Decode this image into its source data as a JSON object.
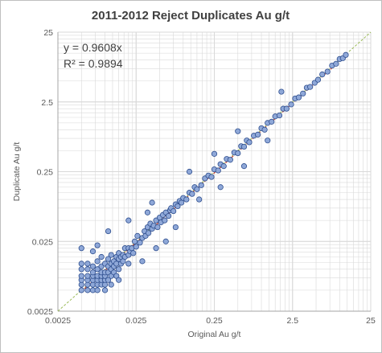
{
  "chart_data": {
    "type": "scatter",
    "title": "2011-2012 Reject Duplicates Au g/t",
    "xlabel": "Original Au g/t",
    "ylabel": "Duplicate Au  g/t",
    "scale": "log",
    "xlim": [
      0.0025,
      25
    ],
    "ylim": [
      0.0025,
      25
    ],
    "x_ticks": [
      "0.0025",
      "0.025",
      "0.25",
      "2.5",
      "25"
    ],
    "y_ticks": [
      "0.0025",
      "0.025",
      "0.25",
      "2.5",
      "25"
    ],
    "grid": true,
    "legend": "none",
    "annotations": {
      "equation": "y = 0.9608x",
      "r_squared": "R² = 0.9894"
    },
    "colors": {
      "points_fill": "#8fa8d8",
      "points_edge": "#2f4f8f",
      "trendline": "#c0392b",
      "one_to_one_line": "#9bbb59",
      "grid": "#d9d9d9"
    },
    "series": [
      {
        "name": "",
        "points": [
          [
            0.005,
            0.005
          ],
          [
            0.005,
            0.006
          ],
          [
            0.005,
            0.007
          ],
          [
            0.005,
            0.008
          ],
          [
            0.005,
            0.01
          ],
          [
            0.005,
            0.012
          ],
          [
            0.006,
            0.005
          ],
          [
            0.006,
            0.006
          ],
          [
            0.006,
            0.007
          ],
          [
            0.006,
            0.008
          ],
          [
            0.006,
            0.01
          ],
          [
            0.006,
            0.012
          ],
          [
            0.007,
            0.005
          ],
          [
            0.007,
            0.006
          ],
          [
            0.007,
            0.007
          ],
          [
            0.007,
            0.008
          ],
          [
            0.007,
            0.009
          ],
          [
            0.007,
            0.011
          ],
          [
            0.008,
            0.005
          ],
          [
            0.008,
            0.006
          ],
          [
            0.008,
            0.007
          ],
          [
            0.008,
            0.008
          ],
          [
            0.008,
            0.01
          ],
          [
            0.008,
            0.013
          ],
          [
            0.009,
            0.006
          ],
          [
            0.009,
            0.007
          ],
          [
            0.009,
            0.008
          ],
          [
            0.009,
            0.009
          ],
          [
            0.009,
            0.011
          ],
          [
            0.009,
            0.015
          ],
          [
            0.01,
            0.005
          ],
          [
            0.01,
            0.006
          ],
          [
            0.01,
            0.007
          ],
          [
            0.01,
            0.008
          ],
          [
            0.01,
            0.009
          ],
          [
            0.01,
            0.012
          ],
          [
            0.011,
            0.007
          ],
          [
            0.011,
            0.009
          ],
          [
            0.011,
            0.011
          ],
          [
            0.011,
            0.014
          ],
          [
            0.012,
            0.006
          ],
          [
            0.012,
            0.008
          ],
          [
            0.012,
            0.01
          ],
          [
            0.012,
            0.012
          ],
          [
            0.012,
            0.016
          ],
          [
            0.013,
            0.009
          ],
          [
            0.013,
            0.011
          ],
          [
            0.013,
            0.013
          ],
          [
            0.014,
            0.008
          ],
          [
            0.014,
            0.012
          ],
          [
            0.014,
            0.015
          ],
          [
            0.015,
            0.01
          ],
          [
            0.015,
            0.014
          ],
          [
            0.015,
            0.017
          ],
          [
            0.016,
            0.012
          ],
          [
            0.016,
            0.015
          ],
          [
            0.017,
            0.013
          ],
          [
            0.017,
            0.016
          ],
          [
            0.018,
            0.015
          ],
          [
            0.018,
            0.02
          ],
          [
            0.02,
            0.012
          ],
          [
            0.02,
            0.016
          ],
          [
            0.02,
            0.02
          ],
          [
            0.021,
            0.018
          ],
          [
            0.022,
            0.02
          ],
          [
            0.023,
            0.017
          ],
          [
            0.024,
            0.025
          ],
          [
            0.025,
            0.021
          ],
          [
            0.026,
            0.03
          ],
          [
            0.028,
            0.024
          ],
          [
            0.03,
            0.028
          ],
          [
            0.032,
            0.035
          ],
          [
            0.033,
            0.03
          ],
          [
            0.035,
            0.04
          ],
          [
            0.036,
            0.033
          ],
          [
            0.038,
            0.045
          ],
          [
            0.04,
            0.038
          ],
          [
            0.042,
            0.042
          ],
          [
            0.045,
            0.05
          ],
          [
            0.047,
            0.04
          ],
          [
            0.05,
            0.055
          ],
          [
            0.052,
            0.047
          ],
          [
            0.055,
            0.06
          ],
          [
            0.058,
            0.05
          ],
          [
            0.06,
            0.065
          ],
          [
            0.065,
            0.058
          ],
          [
            0.068,
            0.07
          ],
          [
            0.07,
            0.075
          ],
          [
            0.075,
            0.068
          ],
          [
            0.08,
            0.085
          ],
          [
            0.085,
            0.08
          ],
          [
            0.09,
            0.095
          ],
          [
            0.095,
            0.09
          ],
          [
            0.1,
            0.105
          ],
          [
            0.11,
            0.1
          ],
          [
            0.12,
            0.125
          ],
          [
            0.13,
            0.12
          ],
          [
            0.14,
            0.15
          ],
          [
            0.15,
            0.14
          ],
          [
            0.17,
            0.16
          ],
          [
            0.19,
            0.2
          ],
          [
            0.21,
            0.22
          ],
          [
            0.23,
            0.21
          ],
          [
            0.25,
            0.27
          ],
          [
            0.28,
            0.26
          ],
          [
            0.3,
            0.32
          ],
          [
            0.33,
            0.3
          ],
          [
            0.36,
            0.38
          ],
          [
            0.4,
            0.37
          ],
          [
            0.45,
            0.47
          ],
          [
            0.5,
            0.46
          ],
          [
            0.55,
            0.58
          ],
          [
            0.6,
            0.57
          ],
          [
            0.65,
            0.7
          ],
          [
            0.7,
            0.66
          ],
          [
            0.8,
            0.82
          ],
          [
            0.9,
            0.85
          ],
          [
            1.0,
            1.05
          ],
          [
            1.1,
            1.0
          ],
          [
            1.2,
            1.25
          ],
          [
            1.35,
            1.3
          ],
          [
            1.5,
            1.55
          ],
          [
            1.7,
            1.6
          ],
          [
            1.9,
            2.0
          ],
          [
            2.1,
            2.0
          ],
          [
            2.4,
            2.3
          ],
          [
            2.7,
            2.8
          ],
          [
            3.0,
            2.9
          ],
          [
            3.4,
            3.3
          ],
          [
            3.8,
            4.0
          ],
          [
            4.2,
            4.1
          ],
          [
            4.8,
            4.7
          ],
          [
            5.3,
            5.2
          ],
          [
            6.0,
            6.2
          ],
          [
            7.0,
            6.8
          ],
          [
            8.0,
            8.3
          ],
          [
            9.0,
            8.8
          ],
          [
            10.0,
            10.3
          ],
          [
            11.0,
            10.6
          ],
          [
            12.0,
            11.8
          ],
          [
            0.02,
            0.05
          ],
          [
            0.011,
            0.035
          ],
          [
            0.008,
            0.022
          ],
          [
            0.007,
            0.018
          ],
          [
            0.005,
            0.02
          ],
          [
            0.03,
            0.013
          ],
          [
            0.015,
            0.007
          ],
          [
            0.06,
            0.025
          ],
          [
            0.04,
            0.09
          ],
          [
            0.08,
            0.04
          ],
          [
            0.16,
            0.1
          ],
          [
            0.12,
            0.25
          ],
          [
            0.3,
            0.15
          ],
          [
            0.25,
            0.45
          ],
          [
            0.6,
            0.3
          ],
          [
            0.5,
            0.95
          ],
          [
            1.2,
            0.7
          ],
          [
            1.8,
            3.5
          ],
          [
            0.045,
            0.02
          ],
          [
            0.035,
            0.065
          ]
        ]
      }
    ],
    "trendline": {
      "type": "linear",
      "slope": 0.9608
    },
    "reference_line": {
      "type": "1:1"
    }
  }
}
